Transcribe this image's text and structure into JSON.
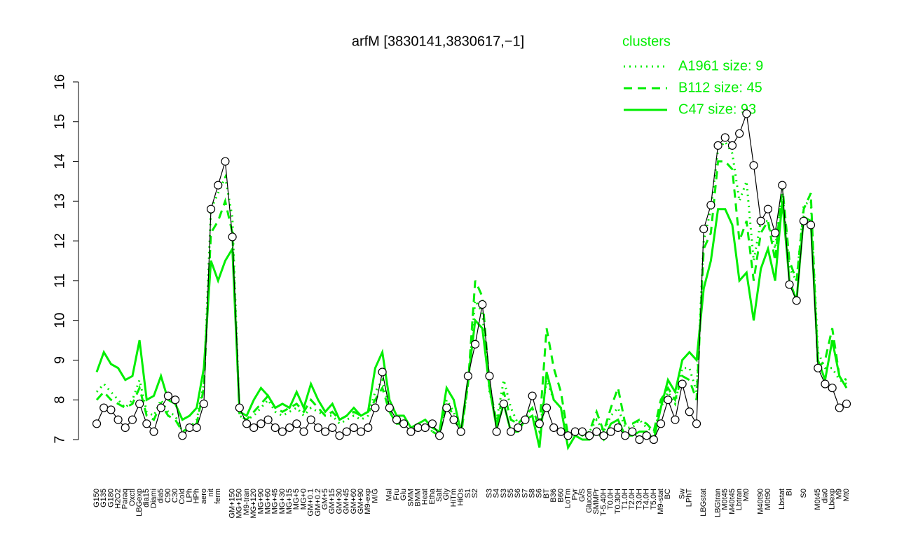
{
  "chart_data": {
    "type": "line",
    "title": "arfM [3830141,3830617,−1]",
    "legend_title": "clusters",
    "legend_position": "top-right",
    "color": "#000000",
    "ylim": [
      7,
      16
    ],
    "yticks": [
      7,
      8,
      9,
      10,
      11,
      12,
      13,
      14,
      15,
      16
    ],
    "categories": [
      "G150",
      "G135",
      "G180",
      "H2O2",
      "Paraq",
      "Oxctl",
      "LBGexp",
      "dia15",
      "Diami",
      "dia5",
      "C90",
      "C30",
      "Cold",
      "LPh",
      "HPh",
      "aero",
      "nit",
      "ferm",
      null,
      "GM+150",
      "MG+150",
      "M9-tran",
      "MG+120",
      "MG+90",
      "MG+60",
      "MG+45",
      "MG+30",
      "MG+15",
      "MG+5",
      "MG+0",
      "GM+0.1",
      "GM+0.2",
      "GM+5",
      "GM+15",
      "GM+30",
      "GM+45",
      "GM+60",
      "GM+90",
      "M9-exp",
      "M/G",
      null,
      "Mal",
      "Fru",
      "Glu",
      "SMM",
      "BMM",
      "Heat",
      "Etha",
      "Salt",
      "Gly",
      "HiTm",
      "HiOs",
      "S1",
      "S2",
      null,
      "S3",
      "S4",
      "S3",
      "S5",
      "S6",
      "S7",
      "S8",
      "S6",
      "BT",
      "B36",
      "B60",
      "LoTm",
      "Pyr",
      "G/S",
      "Glucon",
      "SMMPr",
      "T-5.40H",
      "T0.0H",
      "T0.30H",
      "T1.0H",
      "T2.0H",
      "T3.0H",
      "T4.0H",
      "T5.0H",
      "M9-stat",
      "BC",
      null,
      "Sw",
      "LPhT",
      null,
      "LBGstat",
      null,
      "LBGtran",
      "M0t45",
      "M40t45",
      "Lbtran",
      "Mt0",
      null,
      "M40t90",
      "M0t90",
      null,
      "Lbstat",
      "BI",
      null,
      "S0",
      null,
      "M0t45",
      "dia0",
      "Lbexp",
      "M9",
      "Mt0"
    ],
    "values": [
      7.4,
      7.8,
      7.75,
      7.5,
      7.3,
      7.5,
      7.9,
      7.4,
      7.2,
      7.8,
      8.1,
      8.0,
      7.1,
      7.3,
      7.3,
      7.9,
      12.8,
      13.4,
      14.0,
      12.1,
      7.8,
      7.4,
      7.3,
      7.4,
      7.5,
      7.3,
      7.2,
      7.3,
      7.4,
      7.2,
      7.5,
      7.3,
      7.2,
      7.3,
      7.1,
      7.2,
      7.3,
      7.2,
      7.3,
      7.8,
      8.7,
      7.8,
      7.5,
      7.4,
      7.2,
      7.3,
      7.3,
      7.4,
      7.1,
      7.8,
      7.5,
      7.2,
      8.6,
      9.4,
      10.4,
      8.6,
      7.2,
      7.9,
      7.2,
      7.3,
      7.5,
      8.1,
      7.4,
      7.8,
      7.3,
      7.2,
      7.1,
      7.2,
      7.2,
      7.1,
      7.2,
      7.1,
      7.2,
      7.3,
      7.1,
      7.2,
      7.0,
      7.1,
      7.0,
      7.4,
      8.0,
      7.5,
      8.4,
      7.7,
      7.4,
      12.3,
      12.9,
      14.4,
      14.6,
      14.4,
      14.7,
      15.2,
      13.9,
      12.5,
      12.8,
      12.2,
      13.4,
      10.9,
      10.5,
      12.5,
      12.4,
      8.8,
      8.4,
      8.3,
      7.8,
      7.9
    ],
    "series": [
      {
        "name": "A1961 size: 9",
        "color": "#00ee00",
        "linestyle": "dotted",
        "values": [
          8.2,
          8.4,
          8.2,
          8.0,
          7.8,
          8.0,
          8.5,
          7.7,
          7.6,
          8.0,
          7.7,
          7.6,
          7.2,
          7.3,
          7.5,
          8.4,
          12.8,
          13.2,
          13.6,
          12.6,
          7.6,
          7.5,
          7.6,
          7.8,
          8.0,
          7.7,
          7.6,
          7.7,
          7.8,
          7.6,
          7.8,
          7.7,
          7.6,
          7.6,
          7.4,
          7.5,
          7.6,
          7.5,
          7.6,
          8.2,
          8.5,
          7.8,
          7.4,
          7.4,
          7.2,
          7.3,
          7.4,
          7.2,
          7.1,
          8.0,
          7.7,
          7.1,
          8.4,
          10.5,
          10.2,
          8.2,
          7.5,
          8.5,
          7.8,
          7.4,
          7.6,
          7.6,
          7.2,
          8.5,
          8.0,
          7.8,
          7.0,
          7.2,
          7.1,
          7.2,
          7.5,
          7.2,
          7.6,
          7.8,
          7.3,
          7.3,
          7.5,
          7.3,
          7.2,
          7.8,
          8.2,
          7.9,
          8.8,
          8.8,
          8.2,
          12.0,
          12.8,
          14.3,
          14.5,
          14.2,
          13.0,
          13.5,
          11.5,
          12.5,
          12.5,
          11.8,
          13.3,
          11.3,
          11.0,
          12.9,
          13.0,
          9.2,
          8.8,
          8.8,
          8.5,
          8.4
        ]
      },
      {
        "name": "B112 size: 45",
        "color": "#00ee00",
        "linestyle": "dashed",
        "values": [
          8.0,
          8.2,
          8.0,
          7.9,
          7.8,
          7.9,
          8.3,
          7.6,
          7.5,
          7.9,
          7.6,
          7.5,
          7.2,
          7.3,
          7.4,
          8.3,
          12.2,
          12.5,
          13.0,
          12.2,
          7.6,
          7.5,
          7.7,
          7.9,
          8.1,
          7.8,
          7.7,
          7.8,
          7.9,
          7.7,
          8.0,
          7.8,
          7.6,
          7.7,
          7.5,
          7.6,
          7.7,
          7.6,
          7.7,
          8.0,
          8.3,
          7.7,
          7.4,
          7.4,
          7.2,
          7.3,
          7.3,
          7.2,
          7.1,
          7.9,
          7.6,
          7.1,
          8.4,
          11.0,
          10.6,
          8.4,
          7.4,
          8.2,
          7.5,
          7.4,
          7.6,
          7.8,
          7.3,
          9.8,
          8.8,
          8.2,
          7.1,
          7.2,
          7.1,
          7.2,
          7.7,
          7.2,
          7.8,
          8.3,
          7.4,
          7.4,
          7.5,
          7.4,
          7.2,
          8.0,
          8.3,
          8.0,
          8.6,
          8.5,
          8.0,
          11.8,
          12.2,
          14.0,
          14.0,
          13.8,
          12.0,
          12.5,
          11.0,
          12.2,
          12.5,
          11.5,
          13.4,
          11.5,
          11.0,
          12.8,
          13.2,
          8.8,
          9.0,
          9.8,
          8.6,
          8.5
        ]
      },
      {
        "name": "C47 size: 93",
        "color": "#00ee00",
        "linestyle": "solid",
        "values": [
          8.7,
          9.2,
          8.9,
          8.8,
          8.5,
          8.6,
          9.5,
          8.0,
          8.1,
          8.6,
          8.0,
          7.9,
          7.5,
          7.6,
          7.8,
          8.8,
          11.5,
          11.0,
          11.5,
          11.8,
          7.7,
          7.6,
          8.0,
          8.3,
          8.1,
          7.8,
          7.9,
          7.8,
          8.2,
          7.8,
          8.4,
          8.0,
          7.7,
          7.9,
          7.5,
          7.6,
          7.8,
          7.6,
          7.7,
          8.8,
          9.2,
          8.0,
          7.6,
          7.6,
          7.3,
          7.4,
          7.5,
          7.3,
          7.2,
          8.3,
          8.0,
          7.2,
          8.5,
          10.0,
          9.8,
          8.3,
          7.3,
          7.9,
          7.2,
          7.2,
          7.5,
          7.6,
          6.8,
          8.7,
          8.0,
          7.8,
          6.8,
          7.1,
          7.0,
          7.0,
          7.2,
          7.0,
          7.4,
          7.5,
          7.1,
          7.1,
          7.2,
          7.2,
          7.0,
          7.8,
          8.5,
          8.2,
          9.0,
          9.2,
          9.0,
          10.8,
          11.5,
          12.8,
          12.8,
          12.4,
          11.0,
          11.2,
          10.0,
          11.3,
          11.8,
          11.0,
          13.0,
          11.0,
          10.5,
          12.6,
          12.5,
          9.0,
          8.5,
          9.5,
          8.6,
          8.3
        ]
      }
    ]
  }
}
